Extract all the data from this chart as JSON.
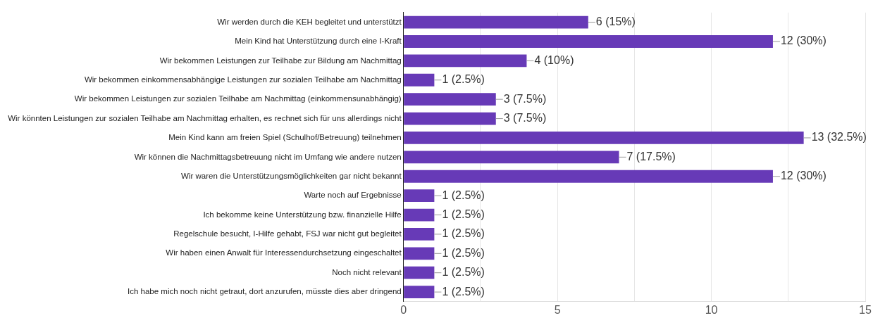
{
  "chart_data": {
    "type": "bar",
    "orientation": "horizontal",
    "categories": [
      "Wir werden durch die KEH begleitet und unterstützt",
      "Mein Kind hat Unterstützung durch eine I-Kraft",
      "Wir bekommen Leistungen zur Teilhabe zur Bildung am Nachmittag",
      "Wir bekommen einkommensabhängige Leistungen zur sozialen Teilhabe am Nachmittag",
      "Wir bekommen Leistungen zur sozialen Teilhabe am Nachmittag (einkommensunabhängig)",
      "Wir könnten Leistungen zur sozialen Teilhabe am Nachmittag erhalten, es rechnet sich für uns allerdings nicht",
      "Mein Kind kann am freien Spiel (Schulhof/Betreuung) teilnehmen",
      "Wir können die Nachmittagsbetreuung nicht im Umfang wie andere nutzen",
      "Wir waren die Unterstützungsmöglichkeiten gar nicht bekannt",
      "Warte noch auf Ergebnisse",
      "Ich bekomme keine Unterstützung bzw. finanzielle Hilfe",
      "Regelschule besucht, I-Hilfe gehabt, FSJ war nicht gut begleitet",
      "Wir haben einen Anwalt für Interessendurchsetzung eingeschaltet",
      "Noch nicht relevant",
      "Ich habe mich noch nicht getraut, dort anzurufen, müsste dies aber dringend"
    ],
    "values": [
      6,
      12,
      4,
      1,
      3,
      3,
      13,
      7,
      12,
      1,
      1,
      1,
      1,
      1,
      1
    ],
    "value_labels": [
      "6 (15%)",
      "12 (30%)",
      "4 (10%)",
      "1 (2.5%)",
      "3 (7.5%)",
      "3 (7.5%)",
      "13 (32.5%)",
      "7 (17.5%)",
      "12 (30%)",
      "1 (2.5%)",
      "1 (2.5%)",
      "1 (2.5%)",
      "1 (2.5%)",
      "1 (2.5%)",
      "1 (2.5%)"
    ],
    "color": "#673ab7",
    "xlim": [
      0,
      15
    ],
    "xticks": [
      0,
      {
        "value": 2.5,
        "label": null
      },
      5,
      {
        "value": 7.5,
        "label": null
      },
      10,
      {
        "value": 12.5,
        "label": null
      },
      15
    ],
    "grid": "x",
    "legend": false
  }
}
